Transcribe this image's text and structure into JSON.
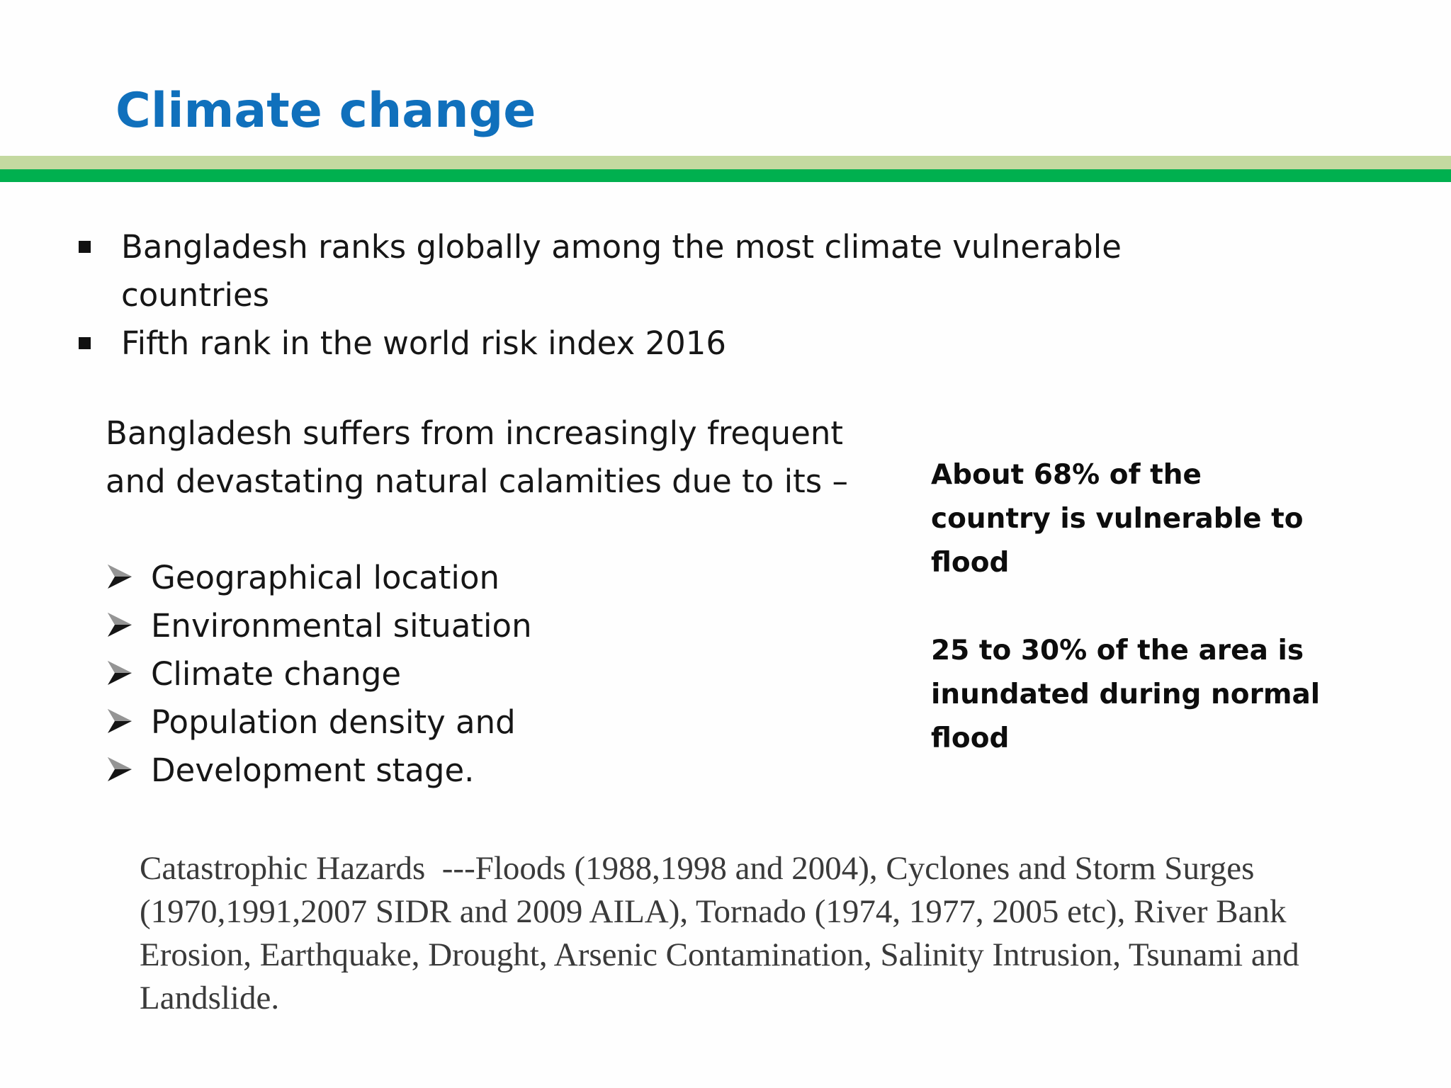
{
  "slide": {
    "title": "Climate change",
    "bullets": [
      "Bangladesh ranks globally among the most climate vulnerable countries",
      "Fifth rank in the world risk index 2016"
    ],
    "intro": "Bangladesh suffers from increasingly frequent and devastating natural calamities due to its –",
    "causes": [
      "Geographical location",
      "Environmental situation",
      "Climate change",
      "Population density and",
      "Development stage."
    ],
    "facts": [
      "About 68% of the country is vulnerable to flood",
      "25 to 30% of the area is inundated during normal flood"
    ],
    "hazards": "Catastrophic Hazards  ---Floods (1988,1998 and 2004), Cyclones and Storm Surges (1970,1991,2007 SIDR and 2009 AILA), Tornado (1974, 1977, 2005 etc), River Bank Erosion, Earthquake, Drought, Arsenic Contamination, Salinity Intrusion, Tsunami and Landslide."
  },
  "colors": {
    "title": "#1070BC",
    "band_light": "#C4D9A0",
    "band_dark": "#00B04F"
  },
  "icons": {
    "bullet": "square-bullet-icon",
    "cause_marker": "arrow-bullet-icon"
  }
}
